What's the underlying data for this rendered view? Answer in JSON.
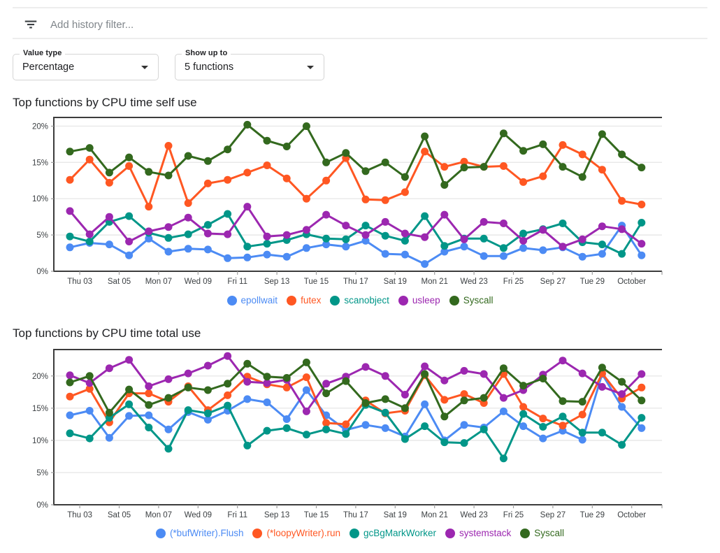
{
  "filter_bar": {
    "icon": "filter-list-icon",
    "placeholder": "Add history filter..."
  },
  "controls": {
    "value_type": {
      "label": "Value type",
      "value": "Percentage"
    },
    "show_up_to": {
      "label": "Show up to",
      "value": "5 functions"
    }
  },
  "colors": {
    "blue": "#4c8bf4",
    "orange": "#ff5722",
    "teal": "#009688",
    "purple": "#9c27b0",
    "green": "#33691e",
    "axis": "#3c3c3c",
    "grid": "#e8e8e8",
    "tick": "#9e9e9e",
    "tick_label": "#3c4043"
  },
  "chart_data": [
    {
      "type": "line",
      "title": "Top functions by CPU time self use",
      "ylabel_format": "percent",
      "ylim": [
        0,
        21.2
      ],
      "yticks": [
        0,
        5,
        10,
        15,
        20
      ],
      "grid": true,
      "legend_position": "bottom",
      "ticks_between_points": true,
      "x_tick_labels": [
        "Thu 03",
        "Sat 05",
        "Mon 07",
        "Wed 09",
        "Fri 11",
        "Sep 13",
        "Tue 15",
        "Thu 17",
        "Sat 19",
        "Mon 21",
        "Wed 23",
        "Fri 25",
        "Sep 27",
        "Tue 29",
        "October"
      ],
      "series": [
        {
          "name": "epollwait",
          "color": "#4c8bf4",
          "values": [
            3.3,
            3.9,
            3.7,
            2.2,
            4.5,
            2.7,
            3.1,
            3.0,
            1.8,
            1.9,
            2.3,
            2.0,
            3.2,
            3.7,
            3.4,
            4.2,
            2.4,
            2.3,
            1.0,
            2.7,
            3.4,
            2.1,
            2.1,
            3.2,
            2.9,
            3.3,
            2.0,
            2.4,
            6.3,
            2.2
          ]
        },
        {
          "name": "futex",
          "color": "#ff5722",
          "values": [
            12.6,
            15.4,
            12.2,
            14.5,
            8.9,
            17.3,
            9.4,
            12.1,
            12.6,
            13.6,
            14.6,
            12.8,
            10.0,
            12.5,
            15.6,
            9.9,
            9.8,
            10.9,
            16.5,
            14.4,
            15.1,
            14.4,
            14.5,
            12.3,
            13.1,
            17.4,
            16.1,
            14.0,
            9.7,
            9.2
          ]
        },
        {
          "name": "scanobject",
          "color": "#009688",
          "values": [
            4.8,
            4.1,
            6.8,
            7.6,
            5.3,
            4.6,
            5.1,
            6.4,
            7.9,
            3.4,
            3.8,
            4.3,
            5.1,
            4.5,
            4.4,
            6.3,
            4.9,
            4.2,
            7.6,
            3.5,
            4.5,
            4.5,
            3.2,
            5.2,
            5.8,
            6.6,
            4.0,
            3.7,
            2.4,
            6.7
          ]
        },
        {
          "name": "usleep",
          "color": "#9c27b0",
          "values": [
            8.3,
            5.1,
            7.5,
            4.1,
            5.5,
            6.1,
            7.4,
            5.2,
            5.1,
            8.9,
            4.8,
            5.0,
            5.7,
            7.8,
            6.3,
            5.0,
            6.8,
            5.2,
            4.7,
            7.8,
            4.4,
            6.8,
            6.6,
            4.2,
            5.7,
            3.4,
            4.4,
            6.2,
            5.8,
            3.8
          ]
        },
        {
          "name": "Syscall",
          "color": "#33691e",
          "values": [
            16.5,
            17.0,
            13.6,
            15.7,
            13.7,
            13.2,
            15.9,
            15.2,
            16.8,
            20.2,
            18.0,
            17.2,
            20.0,
            15.0,
            16.3,
            13.8,
            15.0,
            13.0,
            18.6,
            11.9,
            14.3,
            14.4,
            19.0,
            16.6,
            17.5,
            14.4,
            13.0,
            18.9,
            16.1,
            14.3
          ]
        }
      ]
    },
    {
      "type": "line",
      "title": "Top functions by CPU time total use",
      "ylabel_format": "percent",
      "ylim": [
        0,
        24.1
      ],
      "yticks": [
        0,
        5,
        10,
        15,
        20
      ],
      "grid": true,
      "legend_position": "bottom",
      "ticks_between_points": true,
      "x_tick_labels": [
        "Thu 03",
        "Sat 05",
        "Mon 07",
        "Wed 09",
        "Fri 11",
        "Sep 13",
        "Tue 15",
        "Thu 17",
        "Sat 19",
        "Mon 21",
        "Wed 23",
        "Fri 25",
        "Sep 27",
        "Tue 29",
        "October"
      ],
      "series": [
        {
          "name": "(*bufWriter).Flush",
          "color": "#4c8bf4",
          "values": [
            13.9,
            14.6,
            10.4,
            13.8,
            13.9,
            11.7,
            14.4,
            13.2,
            14.6,
            16.4,
            15.9,
            13.3,
            17.8,
            13.9,
            11.6,
            12.4,
            11.9,
            10.6,
            15.6,
            10.0,
            12.4,
            12.0,
            14.5,
            12.2,
            10.3,
            11.5,
            10.1,
            20.3,
            15.2,
            11.9
          ]
        },
        {
          "name": "(*loopyWriter).run",
          "color": "#ff5722",
          "values": [
            16.8,
            18.0,
            12.8,
            17.3,
            17.3,
            16.0,
            18.4,
            14.7,
            17.0,
            19.9,
            18.7,
            18.2,
            19.8,
            12.7,
            12.5,
            16.2,
            14.2,
            14.6,
            20.1,
            16.3,
            17.2,
            15.8,
            20.3,
            15.2,
            13.4,
            12.3,
            14.0,
            20.4,
            16.5,
            18.2
          ]
        },
        {
          "name": "gcBgMarkWorker",
          "color": "#009688",
          "values": [
            11.1,
            10.3,
            13.5,
            15.6,
            12.0,
            8.7,
            14.7,
            14.2,
            15.4,
            9.2,
            11.5,
            11.9,
            10.9,
            11.7,
            11.0,
            15.5,
            14.3,
            10.2,
            12.2,
            9.7,
            9.6,
            11.7,
            7.2,
            14.1,
            12.1,
            13.7,
            11.2,
            11.2,
            9.3,
            13.5
          ]
        },
        {
          "name": "systemstack",
          "color": "#9c27b0",
          "values": [
            20.1,
            18.9,
            21.2,
            22.5,
            18.4,
            19.5,
            20.4,
            21.6,
            23.1,
            19.1,
            18.9,
            19.4,
            14.5,
            18.8,
            19.9,
            21.4,
            20.0,
            17.1,
            21.5,
            19.3,
            20.8,
            20.3,
            16.6,
            17.8,
            20.2,
            22.4,
            20.4,
            18.3,
            17.2,
            20.3
          ]
        },
        {
          "name": "Syscall",
          "color": "#33691e",
          "values": [
            19.0,
            20.0,
            14.3,
            17.9,
            15.5,
            16.6,
            18.2,
            17.8,
            18.8,
            21.9,
            19.9,
            19.7,
            22.1,
            17.3,
            19.2,
            15.8,
            16.4,
            15.0,
            20.3,
            13.7,
            16.2,
            16.6,
            21.2,
            18.5,
            19.6,
            16.1,
            16.0,
            21.3,
            19.1,
            16.2
          ]
        }
      ]
    }
  ]
}
